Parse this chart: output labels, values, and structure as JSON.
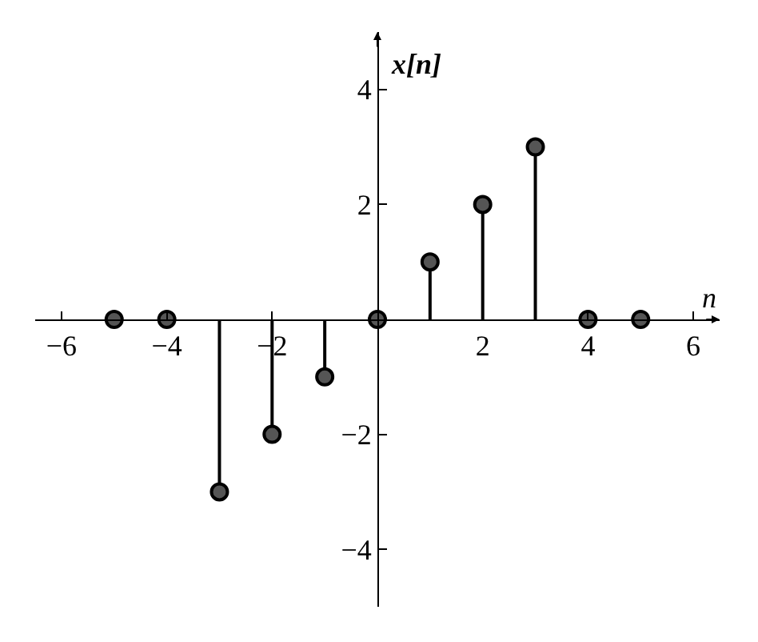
{
  "chart_data": {
    "type": "lollipop",
    "xlabel": "n",
    "ylabel": "x[n]",
    "x": [
      -5,
      -4,
      -3,
      -2,
      -1,
      0,
      1,
      2,
      3,
      4,
      5
    ],
    "series": [
      {
        "color": "#000000",
        "values": [
          0,
          0,
          -3,
          -2,
          -1,
          0,
          1,
          2,
          3,
          0,
          0
        ]
      }
    ],
    "xlim": [
      -6.5,
      6.5
    ],
    "ylim": [
      -5,
      5
    ],
    "xticks": [
      -6,
      -4,
      -2,
      2,
      4,
      6
    ],
    "yticks": [
      -4,
      -2,
      2,
      4
    ],
    "marker": "circle"
  }
}
